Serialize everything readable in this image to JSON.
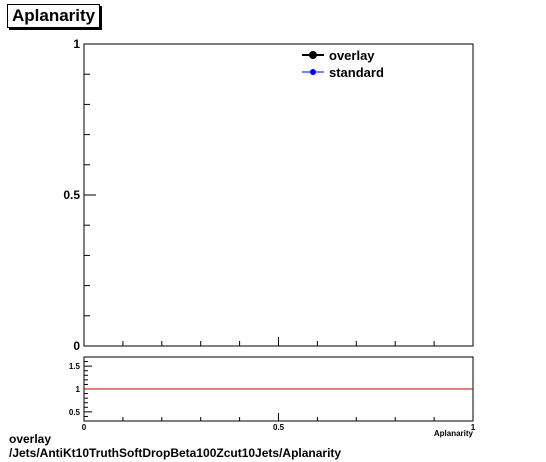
{
  "chart_data": [
    {
      "type": "line",
      "title": "Aplanarity",
      "ylim": [
        0,
        1
      ],
      "xlim": [
        0,
        1
      ],
      "y_ticks": [
        "0",
        "0.5",
        "1"
      ],
      "series": [
        {
          "name": "overlay",
          "color": "#000000",
          "marker": "filled-circle",
          "values": []
        },
        {
          "name": "standard",
          "color": "#0000ff",
          "marker": "filled-circle",
          "values": []
        }
      ],
      "legend": "top-right",
      "grid": false
    },
    {
      "type": "line",
      "xlabel": "Aplanarity",
      "xlim": [
        0,
        1
      ],
      "ylim": [
        0.3,
        1.7
      ],
      "x_ticks": [
        "0",
        "0.5",
        "1"
      ],
      "y_ticks": [
        "0.5",
        "1",
        "1.5"
      ],
      "reference_line": {
        "y": 1,
        "color": "#cc0000"
      },
      "grid": false
    }
  ],
  "footer": {
    "line1": "overlay",
    "line2": "/Jets/AntiKt10TruthSoftDropBeta100Zcut10Jets/Aplanarity"
  }
}
